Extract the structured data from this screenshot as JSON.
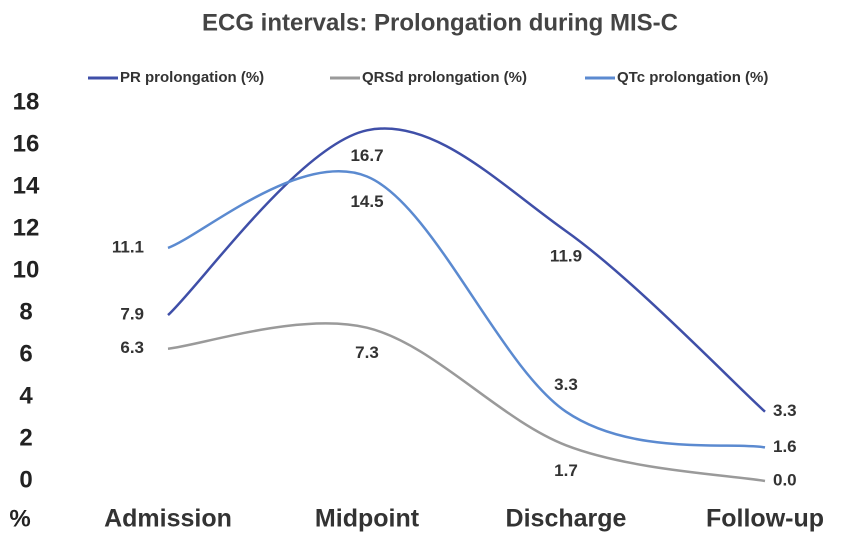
{
  "chart_data": {
    "type": "line",
    "title": "ECG intervals: Prolongation during MIS-C",
    "y_label": "%",
    "categories": [
      "Admission",
      "Midpoint",
      "Discharge",
      "Follow-up"
    ],
    "series": [
      {
        "name": "PR prolongation (%)",
        "color": "#3f4fa8",
        "values": [
          7.9,
          16.7,
          11.9,
          3.3
        ],
        "value_labels": [
          "7.9",
          "16.7",
          "11.9",
          "3.3"
        ]
      },
      {
        "name": "QRSd prolongation (%)",
        "color": "#9a9a9a",
        "values": [
          6.3,
          7.3,
          1.7,
          0.0
        ],
        "value_labels": [
          "6.3",
          "7.3",
          "1.7",
          "0.0"
        ]
      },
      {
        "name": "QTc prolongation (%)",
        "color": "#5b8ad0",
        "values": [
          11.1,
          14.5,
          3.3,
          1.6
        ],
        "value_labels": [
          "11.1",
          "14.5",
          "3.3",
          "1.6"
        ]
      }
    ],
    "ylim": [
      0,
      18
    ],
    "yticks": [
      0,
      2,
      4,
      6,
      8,
      10,
      12,
      14,
      16,
      18
    ],
    "grid": false,
    "legend": "top"
  }
}
